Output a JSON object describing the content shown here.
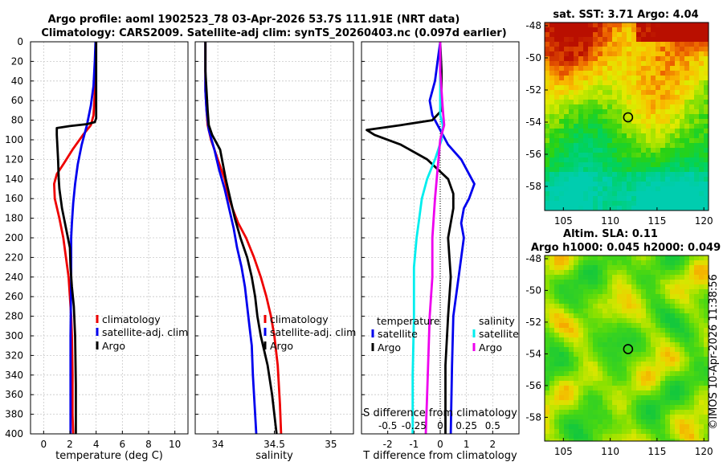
{
  "header": {
    "title_line1": "Argo profile: aoml 1902523_78 03-Apr-2026 53.7S 111.91E (NRT data)",
    "title_line2": "Climatology: CARS2009. Satellite-adj clim: synTS_20260403.nc (0.097d earlier)"
  },
  "side_label": "©IMOS 10-Apr-2026 11:38:56",
  "colors": {
    "climatology": "#ee0000",
    "satellite": "#0000ee",
    "argo": "#000000",
    "sal_satellite": "#00eeee",
    "sal_argo": "#ee00ee"
  },
  "chart_data": [
    {
      "type": "line",
      "name": "temperature-panel",
      "xlabel": "temperature (deg C)",
      "xlim": [
        -1,
        11
      ],
      "ylim": [
        400,
        0
      ],
      "xticks": [
        0,
        2,
        4,
        6,
        8,
        10
      ],
      "xtick_labels": [
        "0",
        "2",
        "4",
        "6",
        "8",
        "10"
      ],
      "yticks": [
        0,
        20,
        40,
        60,
        80,
        100,
        120,
        140,
        160,
        180,
        200,
        220,
        240,
        260,
        280,
        300,
        320,
        340,
        360,
        380,
        400
      ],
      "ytick_labels": [
        "0",
        "20",
        "40",
        "60",
        "80",
        "100",
        "120",
        "140",
        "160",
        "180",
        "200",
        "220",
        "240",
        "260",
        "280",
        "300",
        "320",
        "340",
        "360",
        "380",
        "400"
      ],
      "legend": {
        "position": "lower-right",
        "entries": [
          "climatology",
          "satellite-adj. clim",
          "Argo"
        ]
      },
      "series": [
        {
          "name": "climatology",
          "color": "#ee0000",
          "x": [
            4.0,
            3.95,
            3.8,
            3.6,
            3.0,
            2.2,
            1.5,
            1.0,
            0.8,
            0.85,
            1.2,
            1.5,
            1.7,
            1.9,
            2.0,
            2.1,
            2.15,
            2.2,
            2.2,
            2.25
          ],
          "y": [
            0,
            40,
            75,
            85,
            95,
            110,
            125,
            135,
            145,
            160,
            180,
            200,
            220,
            240,
            260,
            280,
            300,
            340,
            380,
            400
          ]
        },
        {
          "name": "satellite-adj. clim",
          "color": "#0000ee",
          "x": [
            3.95,
            3.9,
            3.8,
            3.6,
            3.3,
            2.9,
            2.6,
            2.4,
            2.25,
            2.15,
            2.1,
            2.1,
            2.05,
            2.05,
            2.05
          ],
          "y": [
            0,
            20,
            45,
            65,
            85,
            105,
            125,
            145,
            165,
            185,
            200,
            240,
            300,
            360,
            400
          ]
        },
        {
          "name": "Argo",
          "color": "#000000",
          "x": [
            4.0,
            4.0,
            4.0,
            3.9,
            3.3,
            2.0,
            1.0,
            1.0,
            1.1,
            1.15,
            1.2,
            1.4,
            1.7,
            2.0,
            2.05,
            2.15,
            2.3,
            2.4,
            2.45,
            2.45
          ],
          "y": [
            0,
            40,
            78,
            82,
            84,
            86,
            88,
            95,
            120,
            140,
            150,
            170,
            190,
            210,
            230,
            250,
            270,
            300,
            350,
            400
          ]
        }
      ]
    },
    {
      "type": "line",
      "name": "salinity-panel",
      "xlabel": "salinity",
      "xlim": [
        33.8,
        35.2
      ],
      "ylim": [
        400,
        0
      ],
      "xticks": [
        34,
        34.5,
        35
      ],
      "xtick_labels": [
        "34",
        "34.5",
        "35"
      ],
      "legend": {
        "position": "lower-right",
        "entries": [
          "climatology",
          "satellite-adj. clim",
          "Argo"
        ]
      },
      "series": [
        {
          "name": "climatology",
          "color": "#ee0000",
          "x": [
            33.89,
            33.89,
            33.9,
            33.91,
            33.94,
            34.0,
            34.06,
            34.1,
            34.13,
            34.18,
            34.25,
            34.32,
            34.38,
            34.43,
            34.47,
            34.5,
            34.53,
            34.55,
            34.56
          ],
          "y": [
            0,
            50,
            70,
            85,
            100,
            120,
            140,
            160,
            170,
            185,
            200,
            220,
            240,
            260,
            280,
            300,
            330,
            370,
            400
          ]
        },
        {
          "name": "satellite-adj. clim",
          "color": "#0000ee",
          "x": [
            33.89,
            33.89,
            33.9,
            33.92,
            33.97,
            34.01,
            34.06,
            34.1,
            34.14,
            34.17,
            34.21,
            34.24,
            34.26,
            34.28,
            34.3,
            34.31,
            34.34
          ],
          "y": [
            0,
            50,
            70,
            90,
            110,
            130,
            150,
            170,
            190,
            210,
            230,
            250,
            270,
            290,
            310,
            340,
            400
          ]
        },
        {
          "name": "Argo",
          "color": "#000000",
          "x": [
            33.89,
            33.89,
            33.91,
            33.92,
            33.95,
            34.02,
            34.07,
            34.11,
            34.15,
            34.2,
            34.26,
            34.3,
            34.33,
            34.35,
            34.38,
            34.44,
            34.48,
            34.52
          ],
          "y": [
            0,
            30,
            70,
            85,
            95,
            110,
            140,
            160,
            180,
            200,
            220,
            240,
            260,
            280,
            300,
            330,
            360,
            400
          ]
        }
      ]
    },
    {
      "type": "line",
      "name": "difference-panel",
      "xlabel": "T difference from climatology",
      "xlabel_top": "S difference from climatology",
      "xlim": [
        -3,
        3
      ],
      "ylim": [
        400,
        0
      ],
      "xticks": [
        -2,
        -1,
        0,
        1,
        2
      ],
      "xtick_labels": [
        "-2",
        "-1",
        "0",
        "1",
        "2"
      ],
      "s_ticks": [
        -0.5,
        -0.25,
        0,
        0.25,
        0.5
      ],
      "s_tick_labels": [
        "-0.5",
        "-0.25",
        "0",
        "0.25",
        "0.5"
      ],
      "s_scale": 4,
      "legend_temperature": {
        "title": "temperature",
        "entries": [
          "satellite",
          "Argo"
        ]
      },
      "legend_salinity": {
        "title": "salinity",
        "entries": [
          "satellite",
          "Argo"
        ]
      },
      "series": [
        {
          "name": "temperature satellite",
          "color": "#0000ee",
          "x": [
            0.0,
            -0.1,
            -0.2,
            -0.4,
            -0.3,
            0.0,
            0.3,
            0.8,
            1.1,
            1.3,
            1.1,
            0.9,
            0.8,
            0.9,
            0.7,
            0.5,
            0.45,
            0.4
          ],
          "y": [
            0,
            20,
            40,
            60,
            75,
            90,
            105,
            120,
            135,
            145,
            160,
            170,
            185,
            200,
            240,
            280,
            330,
            400
          ]
        },
        {
          "name": "temperature Argo",
          "color": "#000000",
          "x": [
            0.0,
            0.05,
            0.05,
            -0.3,
            -1.5,
            -2.8,
            -2.5,
            -1.5,
            -0.5,
            0.3,
            0.5,
            0.5,
            0.3,
            0.4,
            0.3,
            0.2,
            0.2
          ],
          "y": [
            0,
            30,
            70,
            80,
            85,
            90,
            95,
            105,
            120,
            140,
            155,
            170,
            200,
            240,
            280,
            330,
            400
          ]
        },
        {
          "name": "salinity satellite",
          "color": "#00eeee",
          "x": [
            0.0,
            0.0,
            0.0,
            0.1,
            0.05,
            -0.2,
            -0.5,
            -0.7,
            -0.8,
            -0.9,
            -1.0,
            -1.0,
            -1.05,
            -1.05
          ],
          "y": [
            0,
            50,
            75,
            85,
            100,
            120,
            140,
            160,
            180,
            200,
            230,
            280,
            340,
            400
          ]
        },
        {
          "name": "salinity Argo",
          "color": "#ee00ee",
          "x": [
            0.0,
            0.0,
            0.1,
            0.15,
            0.0,
            -0.1,
            -0.2,
            -0.3,
            -0.3,
            -0.4,
            -0.45,
            -0.5,
            -0.55
          ],
          "y": [
            0,
            30,
            70,
            85,
            100,
            130,
            160,
            200,
            240,
            280,
            320,
            360,
            400
          ]
        }
      ]
    },
    {
      "type": "heatmap",
      "name": "sst-map",
      "title": "sat. SST: 3.71 Argo: 4.04",
      "xlim": [
        103,
        120.5
      ],
      "ylim": [
        -59.5,
        -47.8
      ],
      "xticks": [
        105,
        110,
        115,
        120
      ],
      "xtick_labels": [
        "105",
        "110",
        "115",
        "120"
      ],
      "yticks": [
        -48,
        -50,
        -52,
        -54,
        -56,
        -58
      ],
      "ytick_labels": [
        "-48",
        "-50",
        "-52",
        "-54",
        "-56",
        "-58"
      ],
      "marker": {
        "lon": 111.91,
        "lat": -53.7
      }
    },
    {
      "type": "heatmap",
      "name": "sla-map",
      "title_line1": "Altim. SLA: 0.11",
      "title_line2": "Argo h1000: 0.045 h2000: 0.049",
      "xlim": [
        103,
        120.5
      ],
      "ylim": [
        -59.5,
        -47.8
      ],
      "xticks": [
        105,
        110,
        115,
        120
      ],
      "xtick_labels": [
        "105",
        "110",
        "115",
        "120"
      ],
      "yticks": [
        -48,
        -50,
        -52,
        -54,
        -56,
        -58
      ],
      "ytick_labels": [
        "-48",
        "-50",
        "-52",
        "-54",
        "-56",
        "-58"
      ],
      "marker": {
        "lon": 111.91,
        "lat": -53.7
      }
    }
  ]
}
